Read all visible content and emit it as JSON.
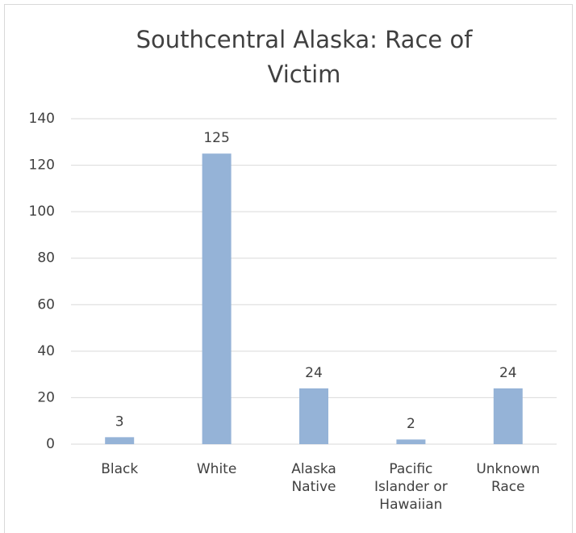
{
  "chart_data": {
    "type": "bar",
    "title": "Southcentral Alaska: Race of Victim",
    "categories": [
      "Black",
      "White",
      "Alaska Native",
      "Pacific Islander or Hawaiian",
      "Unknown Race"
    ],
    "values": [
      3,
      125,
      24,
      2,
      24
    ],
    "color": "#95b3d7",
    "ylim": [
      0,
      140
    ],
    "yticks": [
      0,
      20,
      40,
      60,
      80,
      100,
      120,
      140
    ],
    "grid": true
  }
}
